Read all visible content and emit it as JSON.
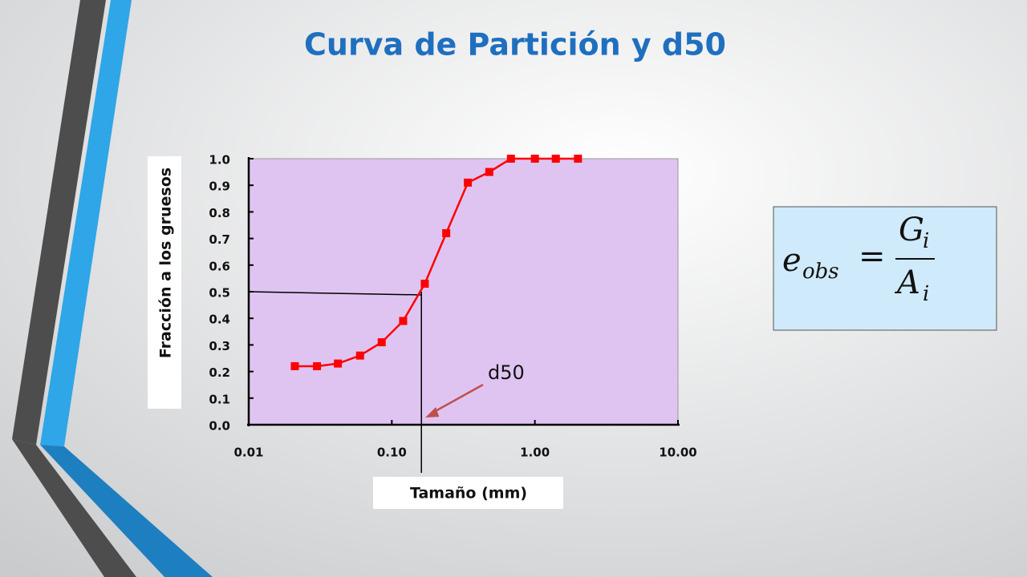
{
  "chart_data": {
    "type": "line",
    "title": "Curva de Partición y d50",
    "xlabel": "Tamaño (mm)",
    "ylabel": "Fracción a los gruesos",
    "log_x": true,
    "x": [
      0.021,
      0.03,
      0.042,
      0.06,
      0.085,
      0.12,
      0.17,
      0.24,
      0.34,
      0.48,
      0.68,
      1.0,
      1.4,
      2.0
    ],
    "values": [
      0.22,
      0.22,
      0.23,
      0.26,
      0.31,
      0.39,
      0.53,
      0.72,
      0.91,
      0.95,
      1.0,
      1.0,
      1.0,
      1.0
    ],
    "color": "#ff0000",
    "xlim": [
      0.01,
      10
    ],
    "xticks": [
      0.01,
      {
        "value": 0.1,
        "label": "0.10"
      },
      {
        "value": 1,
        "label": "1.00"
      },
      {
        "value": 10,
        "label": "10.00"
      }
    ],
    "ylim": [
      0,
      1
    ],
    "yticks": [
      {
        "value": 0,
        "label": "0.0"
      },
      0.1,
      0.2,
      0.3,
      0.4,
      0.5,
      0.6,
      0.7,
      0.8,
      0.9,
      {
        "value": 1,
        "label": "1.0"
      }
    ],
    "annotation": {
      "text": "d50",
      "x": 0.161,
      "y": 0.5
    }
  },
  "formula": {
    "lhs": "e",
    "lhs_sub": "obs",
    "eq": "=",
    "num": "G",
    "num_sub": "i",
    "den": "A",
    "den_sub": "i"
  }
}
